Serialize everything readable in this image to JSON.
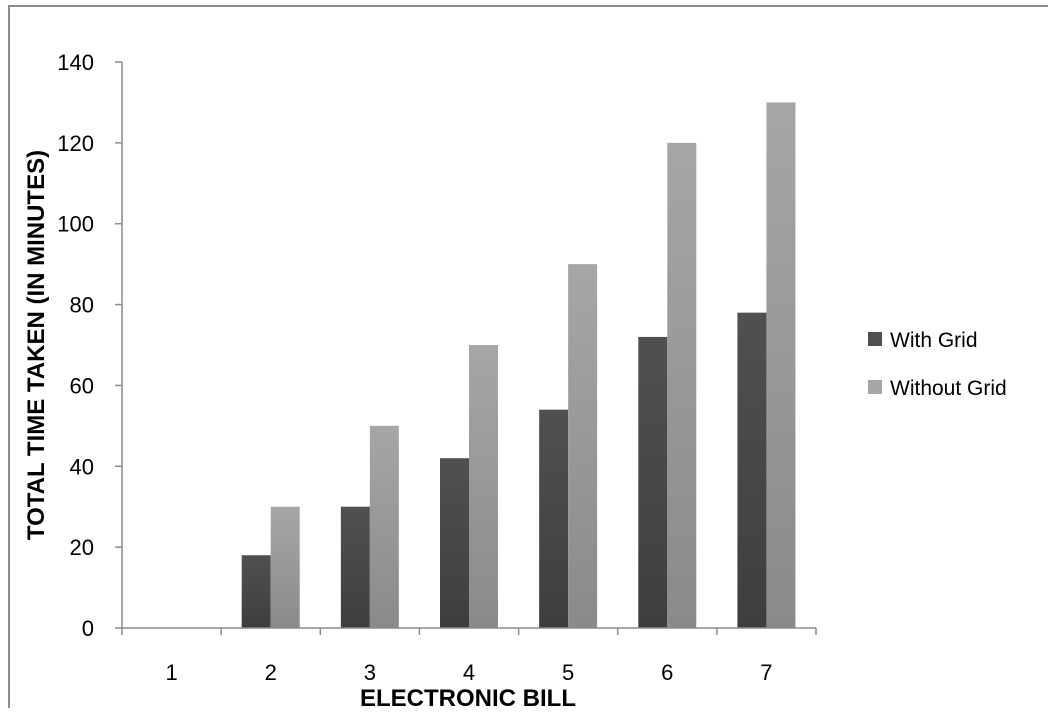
{
  "chart_data": {
    "type": "bar",
    "categories": [
      "1",
      "2",
      "3",
      "4",
      "5",
      "6",
      "7"
    ],
    "series": [
      {
        "name": "With Grid",
        "values": [
          0,
          18,
          30,
          42,
          54,
          72,
          78
        ],
        "color": "#505050"
      },
      {
        "name": "Without Grid",
        "values": [
          0,
          30,
          50,
          70,
          90,
          120,
          130
        ],
        "color": "#a6a6a6"
      }
    ],
    "title": "",
    "xlabel": "ELECTRONIC BILL",
    "ylabel": "TOTAL TIME TAKEN (IN MINUTES)",
    "ylim": [
      0,
      140
    ],
    "yticks": [
      0,
      20,
      40,
      60,
      80,
      100,
      120,
      140
    ],
    "grid": false,
    "legend_position": "right"
  }
}
